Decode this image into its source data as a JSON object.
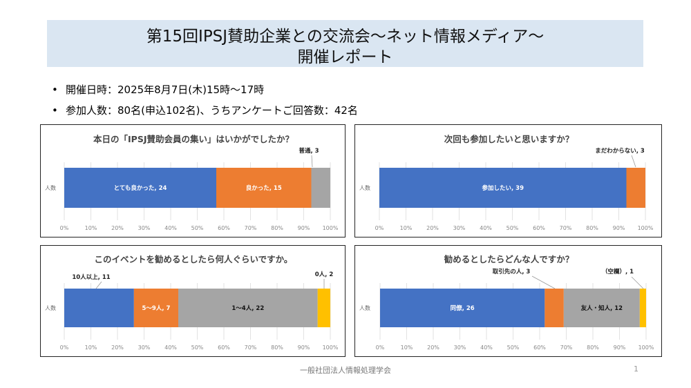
{
  "header": {
    "title_line1": "第15回IPSJ賛助企業との交流会～ネット情報メディア～",
    "title_line2": "開催レポート"
  },
  "bullets": [
    "開催日時：2025年8月7日(木)15時～17時",
    "参加人数：80名(申込102名)、うちアンケートご回答数：42名"
  ],
  "colors": [
    "#4472c4",
    "#ed7d31",
    "#a5a5a5",
    "#ffc000"
  ],
  "footer": {
    "org": "一般社団法人情報処理学会",
    "page": "1"
  },
  "chart_data": [
    {
      "type": "bar",
      "stacked": "percent",
      "orientation": "horizontal",
      "title": "本日の「IPSJ賛助会員の集い」はいかがでしたか？",
      "categories": [
        "人数"
      ],
      "series": [
        {
          "name": "とても良かった",
          "values": [
            24
          ],
          "label": "とても良かった, 24"
        },
        {
          "name": "良かった",
          "values": [
            15
          ],
          "label": "良かった, 15"
        },
        {
          "name": "普通",
          "values": [
            3
          ],
          "label": "普通, 3"
        }
      ],
      "xticks": [
        "0%",
        "10%",
        "20%",
        "30%",
        "40%",
        "50%",
        "60%",
        "70%",
        "80%",
        "90%",
        "100%"
      ]
    },
    {
      "type": "bar",
      "stacked": "percent",
      "orientation": "horizontal",
      "title": "次回も参加したいと思いますか？",
      "categories": [
        "人数"
      ],
      "series": [
        {
          "name": "参加したい",
          "values": [
            39
          ],
          "label": "参加したい, 39"
        },
        {
          "name": "まだわからない",
          "values": [
            3
          ],
          "label": "まだわからない, 3"
        }
      ],
      "xticks": [
        "0%",
        "10%",
        "20%",
        "30%",
        "40%",
        "50%",
        "60%",
        "70%",
        "80%",
        "90%",
        "100%"
      ]
    },
    {
      "type": "bar",
      "stacked": "percent",
      "orientation": "horizontal",
      "title": "このイベントを勧めるとしたら何人ぐらいですか。",
      "categories": [
        "人数"
      ],
      "series": [
        {
          "name": "10人以上",
          "values": [
            11
          ],
          "label": "10人以上, 11"
        },
        {
          "name": "5～9人",
          "values": [
            7
          ],
          "label": "5～9人, 7"
        },
        {
          "name": "1～4人",
          "values": [
            22
          ],
          "label": "1～4人, 22"
        },
        {
          "name": "0人",
          "values": [
            2
          ],
          "label": "0人, 2"
        }
      ],
      "xticks": [
        "0%",
        "10%",
        "20%",
        "30%",
        "40%",
        "50%",
        "60%",
        "70%",
        "80%",
        "90%",
        "100%"
      ]
    },
    {
      "type": "bar",
      "stacked": "percent",
      "orientation": "horizontal",
      "title": "勧めるとしたらどんな人ですか？",
      "categories": [
        "人数"
      ],
      "series": [
        {
          "name": "同僚",
          "values": [
            26
          ],
          "label": "同僚, 26"
        },
        {
          "name": "取引先の人",
          "values": [
            3
          ],
          "label": "取引先の人, 3"
        },
        {
          "name": "友人・知人",
          "values": [
            12
          ],
          "label": "友人・知人, 12"
        },
        {
          "name": "（空欄）",
          "values": [
            1
          ],
          "label": "（空欄）, 1"
        }
      ],
      "xticks": [
        "0%",
        "10%",
        "20%",
        "30%",
        "40%",
        "50%",
        "60%",
        "70%",
        "80%",
        "90%",
        "100%"
      ]
    }
  ]
}
